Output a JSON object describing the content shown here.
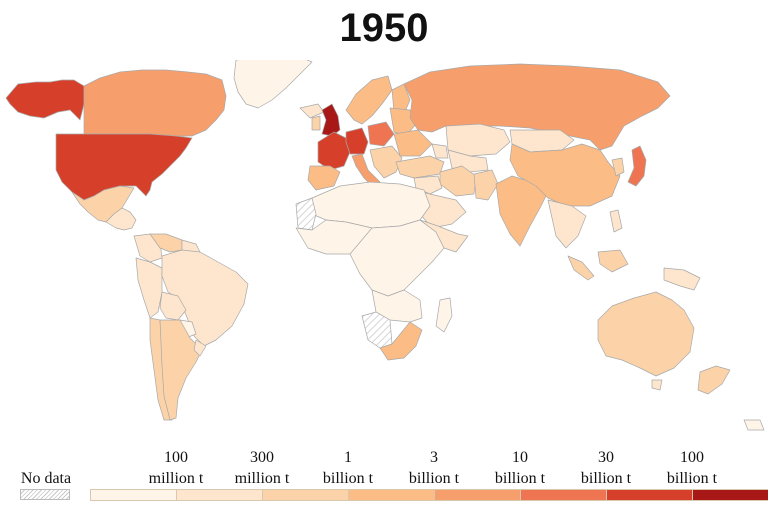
{
  "title": "1950",
  "legend": {
    "no_data_label": "No data",
    "ticks": [
      {
        "line1": "100",
        "line2": "million t"
      },
      {
        "line1": "300",
        "line2": "million t"
      },
      {
        "line1": "1",
        "line2": "billion t"
      },
      {
        "line1": "3",
        "line2": "billion t"
      },
      {
        "line1": "10",
        "line2": "billion t"
      },
      {
        "line1": "30",
        "line2": "billion t"
      },
      {
        "line1": "100",
        "line2": "billion t"
      }
    ],
    "colors": [
      "#fef4e8",
      "#fde6cd",
      "#fcd3a8",
      "#fbbc86",
      "#f79f6c",
      "#ee7452",
      "#d6402b",
      "#a81816"
    ]
  },
  "colors": {
    "c0": "#fef4e8",
    "c1": "#fde6cd",
    "c2": "#fcd3a8",
    "c3": "#fbbc86",
    "c4": "#f79f6c",
    "c5": "#ee7452",
    "c6": "#d6402b",
    "c7": "#a81816",
    "border": "#a8a8a8"
  }
}
